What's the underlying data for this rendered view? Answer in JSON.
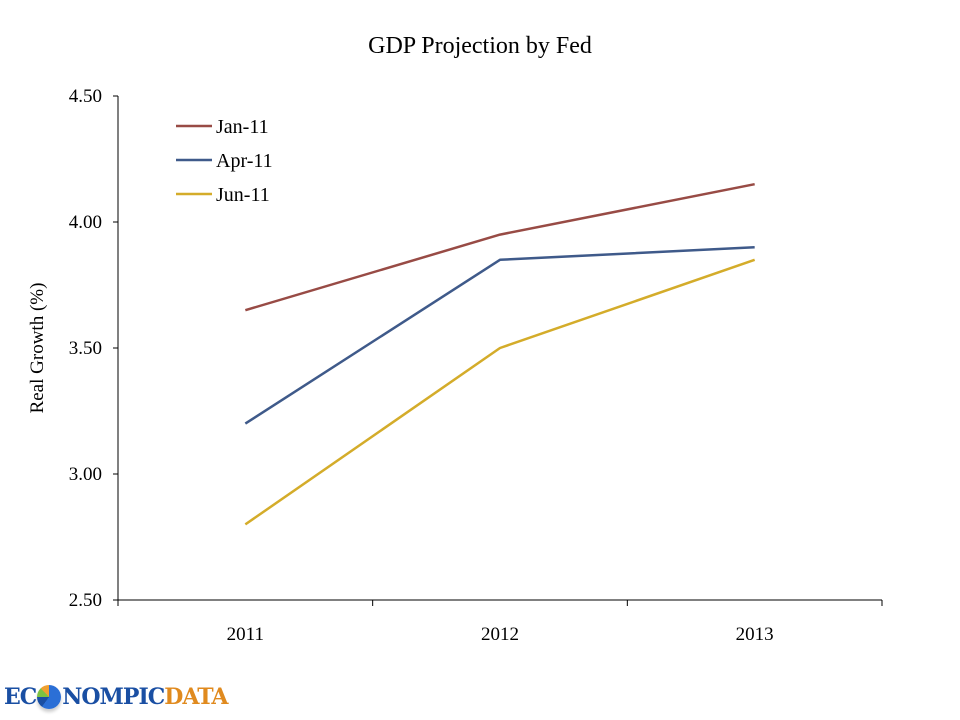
{
  "chart_data": {
    "type": "line",
    "title": "GDP Projection by Fed",
    "xlabel": "",
    "ylabel": "Real Growth (%)",
    "categories": [
      "2011",
      "2012",
      "2013"
    ],
    "ylim": [
      2.5,
      4.5
    ],
    "yticks": [
      "2.50",
      "3.00",
      "3.50",
      "4.00",
      "4.50"
    ],
    "grid": false,
    "legend_position": "top-left",
    "series": [
      {
        "name": "Jan-11",
        "color": "#984b45",
        "values": [
          3.65,
          3.95,
          4.15
        ]
      },
      {
        "name": "Apr-11",
        "color": "#3f5a8a",
        "values": [
          3.2,
          3.85,
          3.9
        ]
      },
      {
        "name": "Jun-11",
        "color": "#d4ac2a",
        "values": [
          2.8,
          3.5,
          3.85
        ]
      }
    ]
  },
  "logo": {
    "part1_a": "EC",
    "part1_b": "NOMPIC",
    "part2": "DATA"
  }
}
